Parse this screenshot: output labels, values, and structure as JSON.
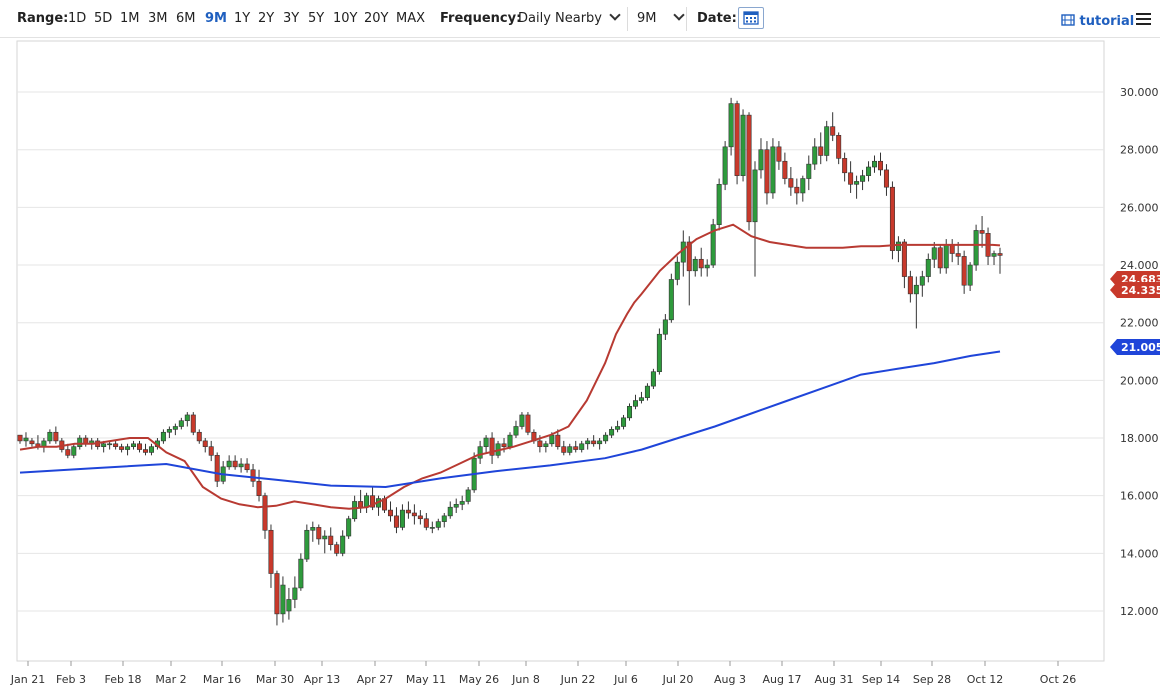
{
  "toolbar": {
    "range_label": "Range:",
    "ranges": [
      "1D",
      "5D",
      "1M",
      "3M",
      "6M",
      "9M",
      "1Y",
      "2Y",
      "3Y",
      "5Y",
      "10Y",
      "20Y",
      "MAX"
    ],
    "active_range": "9M",
    "frequency_label": "Frequency:",
    "frequency_value": "Daily Nearby",
    "period_value": "9M",
    "date_label": "Date:",
    "tutorial_label": "tutorial"
  },
  "colors": {
    "up": "#2e9a3c",
    "down": "#c8392b",
    "ma_short": "#b83a32",
    "ma_long": "#1f45d9",
    "accent": "#1f5fbf"
  },
  "chart_data": {
    "type": "candlestick",
    "x_ticks": [
      "Jan 21",
      "Feb 3",
      "Feb 18",
      "Mar 2",
      "Mar 16",
      "Mar 30",
      "Apr 13",
      "Apr 27",
      "May 11",
      "May 26",
      "Jun 8",
      "Jun 22",
      "Jul 6",
      "Jul 20",
      "Aug 3",
      "Aug 17",
      "Aug 31",
      "Sep 14",
      "Sep 28",
      "Oct 12",
      "Oct 26"
    ],
    "y_ticks": [
      "12.000",
      "14.000",
      "16.000",
      "18.000",
      "20.000",
      "22.000",
      "24.000",
      "26.000",
      "28.000",
      "30.000"
    ],
    "ylim": [
      11.0,
      31.0
    ],
    "last_labels": [
      {
        "text": "24.683",
        "color": "#c8392b",
        "value": 24.683
      },
      {
        "text": "24.335",
        "color": "#c8392b",
        "value": 24.335
      },
      {
        "text": "21.005",
        "color": "#1f45d9",
        "value": 21.005
      }
    ],
    "series": [
      {
        "name": "",
        "type": "line",
        "color": "#b83a32",
        "x": [
          0,
          5,
          10,
          15,
          20,
          25,
          30,
          35,
          38,
          40,
          45,
          50,
          55,
          60,
          65,
          70,
          75,
          80,
          85,
          90,
          95,
          100,
          105,
          110,
          115,
          120,
          125,
          130,
          135,
          140,
          145,
          150,
          155,
          160,
          163,
          166,
          168,
          170,
          175,
          180,
          185,
          190,
          195,
          200,
          205,
          210,
          215,
          220,
          225,
          230,
          235,
          240,
          245,
          250,
          254,
          258,
          262,
          266,
          268
        ],
        "y": [
          17.6,
          17.7,
          17.7,
          17.8,
          17.8,
          17.9,
          18.0,
          18.0,
          17.7,
          17.5,
          17.2,
          16.3,
          15.9,
          15.7,
          15.6,
          15.65,
          15.8,
          15.7,
          15.6,
          15.55,
          15.6,
          15.9,
          16.3,
          16.6,
          16.8,
          17.1,
          17.4,
          17.55,
          17.7,
          17.9,
          18.1,
          18.4,
          19.3,
          20.6,
          21.6,
          22.3,
          22.7,
          23.0,
          23.8,
          24.4,
          24.9,
          25.2,
          25.4,
          25.0,
          24.8,
          24.7,
          24.6,
          24.6,
          24.6,
          24.65,
          24.65,
          24.7,
          24.7,
          24.7,
          24.7,
          24.7,
          24.7,
          24.7,
          24.68
        ]
      },
      {
        "name": "",
        "type": "line",
        "color": "#1f45d9",
        "x": [
          0,
          20,
          40,
          55,
          70,
          85,
          100,
          115,
          130,
          145,
          160,
          170,
          180,
          190,
          200,
          210,
          220,
          230,
          240,
          250,
          260,
          268
        ],
        "y": [
          16.8,
          16.95,
          17.1,
          16.75,
          16.55,
          16.35,
          16.3,
          16.6,
          16.85,
          17.05,
          17.3,
          17.6,
          18.0,
          18.4,
          18.85,
          19.3,
          19.75,
          20.2,
          20.4,
          20.6,
          20.85,
          21.0
        ]
      }
    ],
    "ohlc": [
      [
        18.1,
        18.1,
        17.8,
        17.9
      ],
      [
        17.9,
        18.2,
        17.7,
        18.0
      ],
      [
        17.9,
        18.0,
        17.7,
        17.8
      ],
      [
        17.8,
        18.1,
        17.6,
        17.7
      ],
      [
        17.7,
        18.0,
        17.5,
        17.9
      ],
      [
        17.9,
        18.3,
        17.8,
        18.2
      ],
      [
        18.2,
        18.4,
        17.8,
        17.9
      ],
      [
        17.9,
        18.0,
        17.5,
        17.6
      ],
      [
        17.6,
        17.8,
        17.3,
        17.4
      ],
      [
        17.4,
        17.8,
        17.3,
        17.7
      ],
      [
        17.7,
        18.1,
        17.6,
        18.0
      ],
      [
        18.0,
        18.1,
        17.7,
        17.8
      ],
      [
        17.8,
        18.0,
        17.6,
        17.9
      ],
      [
        17.9,
        18.0,
        17.6,
        17.7
      ],
      [
        17.7,
        17.9,
        17.5,
        17.8
      ],
      [
        17.8,
        17.9,
        17.6,
        17.8
      ],
      [
        17.8,
        17.9,
        17.6,
        17.7
      ],
      [
        17.7,
        17.8,
        17.5,
        17.6
      ],
      [
        17.6,
        17.8,
        17.4,
        17.7
      ],
      [
        17.7,
        17.9,
        17.6,
        17.8
      ],
      [
        17.8,
        17.9,
        17.5,
        17.6
      ],
      [
        17.6,
        17.8,
        17.4,
        17.5
      ],
      [
        17.5,
        17.8,
        17.4,
        17.7
      ],
      [
        17.7,
        18.0,
        17.6,
        17.9
      ],
      [
        17.9,
        18.3,
        17.8,
        18.2
      ],
      [
        18.2,
        18.4,
        18.0,
        18.3
      ],
      [
        18.3,
        18.5,
        18.1,
        18.4
      ],
      [
        18.4,
        18.7,
        18.3,
        18.6
      ],
      [
        18.6,
        18.9,
        18.4,
        18.8
      ],
      [
        18.8,
        18.9,
        18.1,
        18.2
      ],
      [
        18.2,
        18.3,
        17.8,
        17.9
      ],
      [
        17.9,
        18.0,
        17.5,
        17.7
      ],
      [
        17.7,
        17.9,
        17.2,
        17.4
      ],
      [
        17.4,
        17.5,
        16.3,
        16.5
      ],
      [
        16.5,
        17.2,
        16.4,
        17.0
      ],
      [
        17.0,
        17.4,
        16.9,
        17.2
      ],
      [
        17.2,
        17.4,
        16.9,
        17.0
      ],
      [
        17.0,
        17.3,
        16.8,
        17.1
      ],
      [
        17.1,
        17.3,
        16.8,
        16.9
      ],
      [
        16.9,
        17.1,
        16.3,
        16.5
      ],
      [
        16.5,
        16.9,
        15.8,
        16.0
      ],
      [
        16.0,
        16.1,
        14.5,
        14.8
      ],
      [
        14.8,
        15.0,
        12.8,
        13.3
      ],
      [
        13.3,
        13.4,
        11.5,
        11.9
      ],
      [
        11.9,
        13.2,
        11.6,
        12.9
      ],
      [
        12.0,
        12.8,
        11.7,
        12.4
      ],
      [
        12.4,
        13.2,
        12.1,
        12.8
      ],
      [
        12.8,
        14.0,
        12.7,
        13.8
      ],
      [
        13.8,
        15.0,
        13.7,
        14.8
      ],
      [
        14.8,
        15.1,
        14.4,
        14.9
      ],
      [
        14.9,
        15.0,
        14.3,
        14.5
      ],
      [
        14.5,
        14.8,
        14.0,
        14.6
      ],
      [
        14.6,
        14.9,
        14.1,
        14.3
      ],
      [
        14.3,
        14.4,
        13.9,
        14.0
      ],
      [
        14.0,
        14.8,
        13.9,
        14.6
      ],
      [
        14.6,
        15.3,
        14.5,
        15.2
      ],
      [
        15.2,
        16.0,
        15.1,
        15.8
      ],
      [
        15.8,
        16.2,
        15.4,
        15.6
      ],
      [
        15.6,
        16.1,
        15.4,
        16.0
      ],
      [
        16.0,
        16.3,
        15.5,
        15.6
      ],
      [
        15.6,
        16.0,
        15.3,
        15.9
      ],
      [
        15.9,
        16.0,
        15.4,
        15.5
      ],
      [
        15.5,
        15.8,
        15.1,
        15.3
      ],
      [
        15.3,
        15.6,
        14.7,
        14.9
      ],
      [
        14.9,
        15.7,
        14.8,
        15.5
      ],
      [
        15.5,
        15.8,
        15.2,
        15.4
      ],
      [
        15.4,
        15.7,
        15.0,
        15.3
      ],
      [
        15.3,
        15.5,
        15.0,
        15.2
      ],
      [
        15.2,
        15.4,
        14.8,
        14.9
      ],
      [
        14.9,
        15.1,
        14.7,
        14.9
      ],
      [
        14.9,
        15.2,
        14.8,
        15.1
      ],
      [
        15.1,
        15.4,
        14.9,
        15.3
      ],
      [
        15.3,
        15.8,
        15.2,
        15.6
      ],
      [
        15.6,
        15.9,
        15.4,
        15.7
      ],
      [
        15.7,
        16.0,
        15.5,
        15.8
      ],
      [
        15.8,
        16.3,
        15.7,
        16.2
      ],
      [
        16.2,
        17.5,
        16.1,
        17.3
      ],
      [
        17.3,
        17.9,
        17.1,
        17.7
      ],
      [
        17.7,
        18.1,
        17.5,
        18.0
      ],
      [
        18.0,
        18.2,
        17.1,
        17.4
      ],
      [
        17.4,
        17.9,
        17.3,
        17.8
      ],
      [
        17.8,
        18.0,
        17.5,
        17.7
      ],
      [
        17.7,
        18.2,
        17.6,
        18.1
      ],
      [
        18.1,
        18.6,
        18.0,
        18.4
      ],
      [
        18.4,
        18.9,
        18.3,
        18.8
      ],
      [
        18.8,
        18.9,
        18.1,
        18.2
      ],
      [
        18.2,
        18.3,
        17.8,
        17.9
      ],
      [
        17.9,
        18.1,
        17.5,
        17.7
      ],
      [
        17.7,
        17.9,
        17.5,
        17.8
      ],
      [
        17.8,
        18.2,
        17.7,
        18.1
      ],
      [
        18.1,
        18.3,
        17.6,
        17.7
      ],
      [
        17.7,
        17.9,
        17.4,
        17.5
      ],
      [
        17.5,
        17.8,
        17.4,
        17.7
      ],
      [
        17.7,
        17.9,
        17.5,
        17.6
      ],
      [
        17.6,
        17.9,
        17.5,
        17.8
      ],
      [
        17.8,
        18.0,
        17.6,
        17.9
      ],
      [
        17.9,
        18.1,
        17.7,
        17.8
      ],
      [
        17.8,
        18.0,
        17.6,
        17.9
      ],
      [
        17.9,
        18.2,
        17.8,
        18.1
      ],
      [
        18.1,
        18.4,
        18.0,
        18.3
      ],
      [
        18.3,
        18.6,
        18.2,
        18.4
      ],
      [
        18.4,
        18.8,
        18.3,
        18.7
      ],
      [
        18.7,
        19.2,
        18.6,
        19.1
      ],
      [
        19.1,
        19.5,
        19.0,
        19.3
      ],
      [
        19.3,
        19.6,
        19.2,
        19.4
      ],
      [
        19.4,
        19.9,
        19.3,
        19.8
      ],
      [
        19.8,
        20.4,
        19.7,
        20.3
      ],
      [
        20.3,
        21.8,
        20.2,
        21.6
      ],
      [
        21.6,
        22.3,
        21.4,
        22.1
      ],
      [
        22.1,
        23.7,
        22.0,
        23.5
      ],
      [
        23.5,
        24.3,
        23.3,
        24.1
      ],
      [
        24.1,
        25.2,
        23.6,
        24.8
      ],
      [
        24.8,
        25.0,
        22.6,
        23.8
      ],
      [
        23.8,
        24.3,
        23.6,
        24.2
      ],
      [
        24.2,
        24.6,
        23.6,
        23.9
      ],
      [
        23.9,
        24.2,
        23.6,
        24.0
      ],
      [
        24.0,
        25.6,
        23.9,
        25.4
      ],
      [
        25.4,
        27.0,
        25.2,
        26.8
      ],
      [
        26.8,
        28.3,
        26.6,
        28.1
      ],
      [
        28.1,
        29.8,
        27.8,
        29.6
      ],
      [
        29.6,
        29.7,
        26.8,
        27.1
      ],
      [
        27.1,
        29.4,
        26.9,
        29.2
      ],
      [
        29.2,
        29.3,
        25.2,
        25.5
      ],
      [
        25.5,
        27.6,
        23.6,
        27.3
      ],
      [
        27.3,
        28.4,
        27.0,
        28.0
      ],
      [
        28.0,
        28.3,
        26.1,
        26.5
      ],
      [
        26.5,
        28.4,
        26.3,
        28.1
      ],
      [
        28.1,
        28.3,
        27.3,
        27.6
      ],
      [
        27.6,
        27.9,
        26.8,
        27.0
      ],
      [
        27.0,
        27.4,
        26.4,
        26.7
      ],
      [
        26.7,
        27.0,
        26.1,
        26.5
      ],
      [
        26.5,
        27.1,
        26.2,
        27.0
      ],
      [
        27.0,
        27.8,
        26.6,
        27.5
      ],
      [
        27.5,
        28.4,
        27.3,
        28.1
      ],
      [
        28.1,
        28.6,
        27.5,
        27.8
      ],
      [
        27.8,
        29.0,
        27.6,
        28.8
      ],
      [
        28.8,
        29.3,
        28.3,
        28.5
      ],
      [
        28.5,
        28.6,
        27.5,
        27.7
      ],
      [
        27.7,
        27.9,
        26.9,
        27.2
      ],
      [
        27.2,
        27.6,
        26.5,
        26.8
      ],
      [
        26.8,
        27.1,
        26.3,
        26.9
      ],
      [
        26.9,
        27.3,
        26.6,
        27.1
      ],
      [
        27.1,
        27.6,
        26.9,
        27.4
      ],
      [
        27.4,
        27.8,
        27.2,
        27.6
      ],
      [
        27.6,
        27.9,
        27.1,
        27.3
      ],
      [
        27.3,
        27.5,
        26.4,
        26.7
      ],
      [
        26.7,
        26.9,
        24.2,
        24.5
      ],
      [
        24.5,
        25.0,
        24.1,
        24.8
      ],
      [
        24.8,
        24.9,
        23.2,
        23.6
      ],
      [
        23.6,
        23.8,
        22.7,
        23.0
      ],
      [
        23.0,
        23.6,
        21.8,
        23.3
      ],
      [
        23.3,
        23.8,
        22.9,
        23.6
      ],
      [
        23.6,
        24.4,
        23.4,
        24.2
      ],
      [
        24.2,
        24.8,
        23.9,
        24.6
      ],
      [
        24.6,
        24.7,
        23.7,
        23.9
      ],
      [
        23.9,
        24.9,
        23.7,
        24.7
      ],
      [
        24.7,
        24.9,
        24.1,
        24.4
      ],
      [
        24.4,
        24.8,
        24.0,
        24.3
      ],
      [
        24.3,
        24.5,
        23.0,
        23.3
      ],
      [
        23.3,
        24.1,
        23.1,
        24.0
      ],
      [
        24.0,
        25.4,
        23.8,
        25.2
      ],
      [
        25.2,
        25.7,
        24.6,
        25.1
      ],
      [
        25.1,
        25.3,
        24.0,
        24.3
      ],
      [
        24.3,
        24.5,
        24.0,
        24.4
      ],
      [
        24.4,
        24.6,
        23.7,
        24.335
      ]
    ]
  }
}
